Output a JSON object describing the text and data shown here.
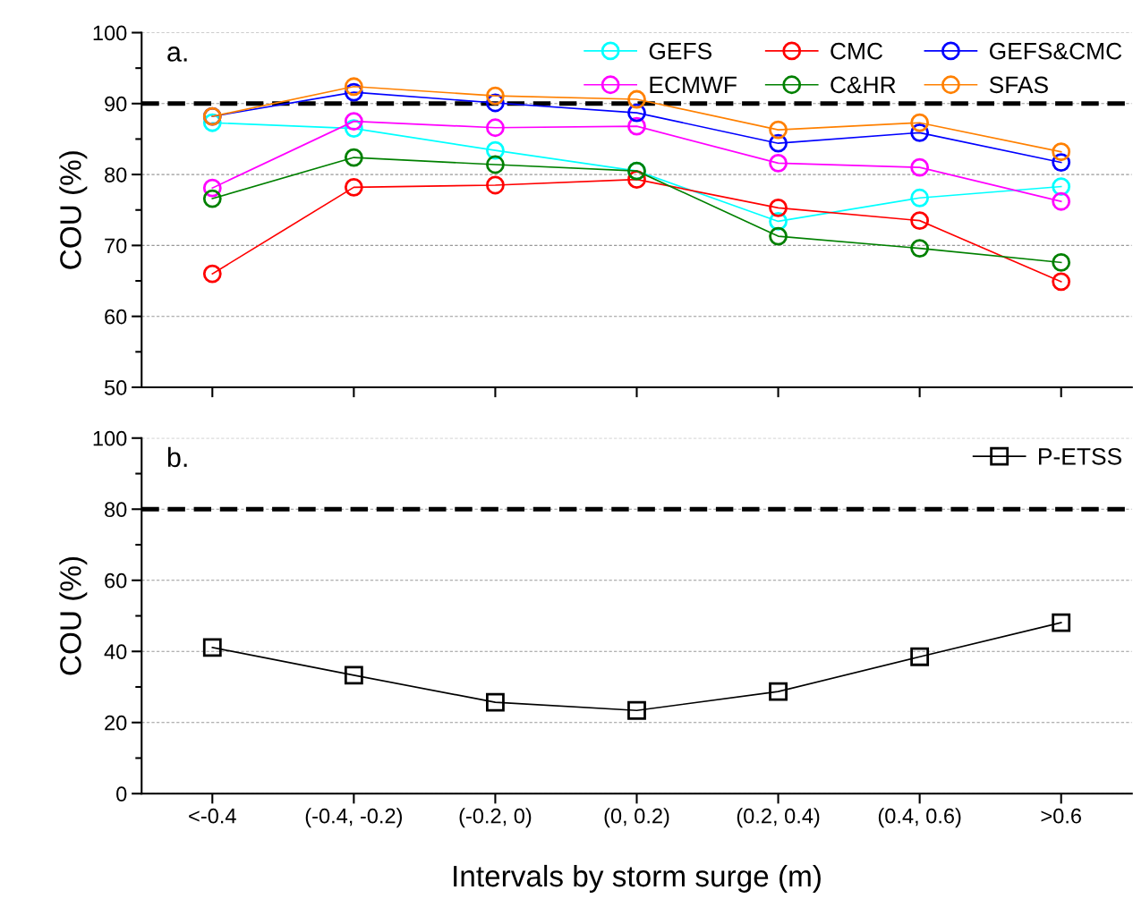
{
  "chart_data": [
    {
      "type": "line",
      "categories": [
        null,
        null,
        null,
        null,
        null,
        null,
        null
      ],
      "ylabel": "COU (%)",
      "annotations": [
        "a."
      ],
      "ylim": [
        50,
        100
      ],
      "yticks": [
        50,
        60,
        70,
        80,
        90,
        100
      ],
      "grid": "y",
      "legend": "top right",
      "marker": "circle",
      "tick_labels": "y",
      "ref_lines": [
        {
          "axis": "y",
          "value": 90,
          "color": "#000000",
          "line_style": "dashed"
        }
      ],
      "series": [
        {
          "name": "GEFS",
          "color": "#00ffff",
          "values": [
            87.3,
            86.5,
            83.4,
            80.5,
            73.4,
            76.7,
            78.3
          ]
        },
        {
          "name": "ECMWF",
          "color": "#ff00ff",
          "values": [
            78.1,
            87.5,
            86.6,
            86.8,
            81.6,
            81.0,
            76.2
          ]
        },
        {
          "name": "CMC",
          "color": "#ff0000",
          "values": [
            66.0,
            78.2,
            78.5,
            79.3,
            75.3,
            73.5,
            64.9
          ]
        },
        {
          "name": "C&HR",
          "color": "#008000",
          "values": [
            76.6,
            82.4,
            81.4,
            80.5,
            71.3,
            69.6,
            67.6
          ]
        },
        {
          "name": "GEFS&CMC",
          "color": "#0000ff",
          "values": [
            88.2,
            91.6,
            90.1,
            88.7,
            84.4,
            85.9,
            81.7
          ]
        },
        {
          "name": "SFAS",
          "color": "#ff8000",
          "values": [
            88.2,
            92.4,
            91.1,
            90.6,
            86.3,
            87.3,
            83.2
          ]
        }
      ]
    },
    {
      "type": "line",
      "categories": [
        "<-0.4",
        "(-0.4, -0.2)",
        "(-0.2, 0)",
        "(0, 0.2)",
        "(0.2, 0.4)",
        "(0.4, 0.6)",
        ">0.6"
      ],
      "xlabel": "Intervals by storm surge (m)",
      "ylabel": "COU (%)",
      "annotations": [
        "b."
      ],
      "ylim": [
        0,
        100
      ],
      "yticks": [
        0,
        20,
        40,
        60,
        80,
        100
      ],
      "grid": "y",
      "legend": "top right",
      "marker": "square",
      "ref_lines": [
        {
          "axis": "y",
          "value": 80,
          "color": "#000000",
          "line_style": "dashed"
        }
      ],
      "series": [
        {
          "name": "P-ETSS",
          "color": "#000000",
          "values": [
            41.1,
            33.3,
            25.7,
            23.4,
            28.7,
            38.5,
            48.1
          ]
        }
      ]
    }
  ]
}
